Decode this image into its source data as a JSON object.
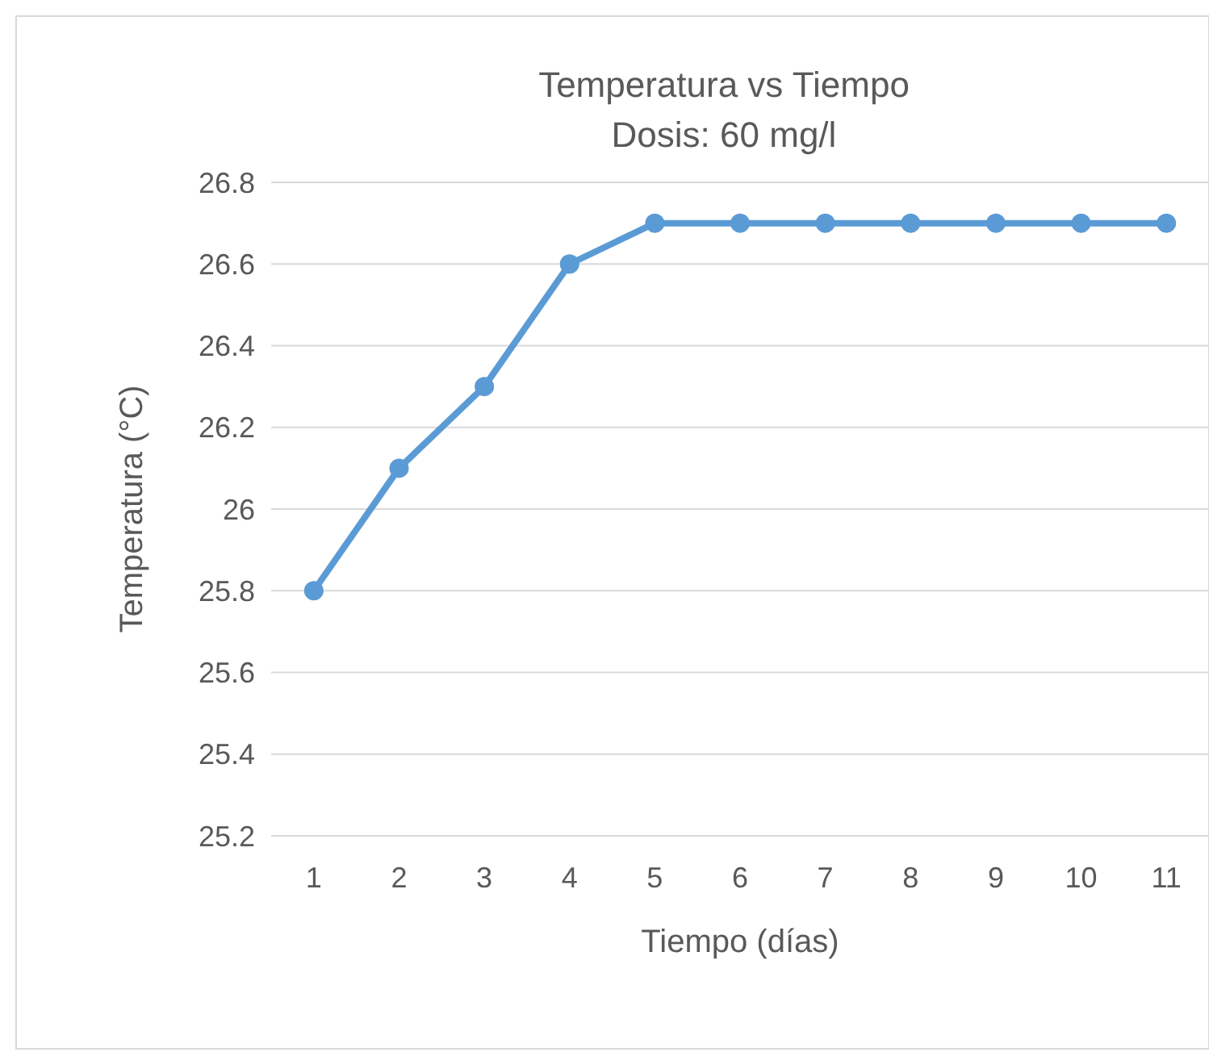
{
  "chart_data": {
    "type": "line",
    "title": "Temperatura vs Tiempo",
    "subtitle": "Dosis: 60 mg/l",
    "xlabel": "Tiempo (días)",
    "ylabel": "Temperatura (°C)",
    "categories": [
      "1",
      "2",
      "3",
      "4",
      "5",
      "6",
      "7",
      "8",
      "9",
      "10",
      "11"
    ],
    "series": [
      {
        "color": "#5b9bd5",
        "values": [
          25.8,
          26.1,
          26.3,
          26.6,
          26.7,
          26.7,
          26.7,
          26.7,
          26.7,
          26.7,
          26.7
        ]
      }
    ],
    "ylim": [
      25.2,
      26.8
    ],
    "yticks": [
      25.2,
      25.4,
      25.6,
      25.8,
      26,
      26.2,
      26.4,
      26.6,
      26.8
    ],
    "grid": "y",
    "marker": "circle",
    "line_style": "solid"
  }
}
